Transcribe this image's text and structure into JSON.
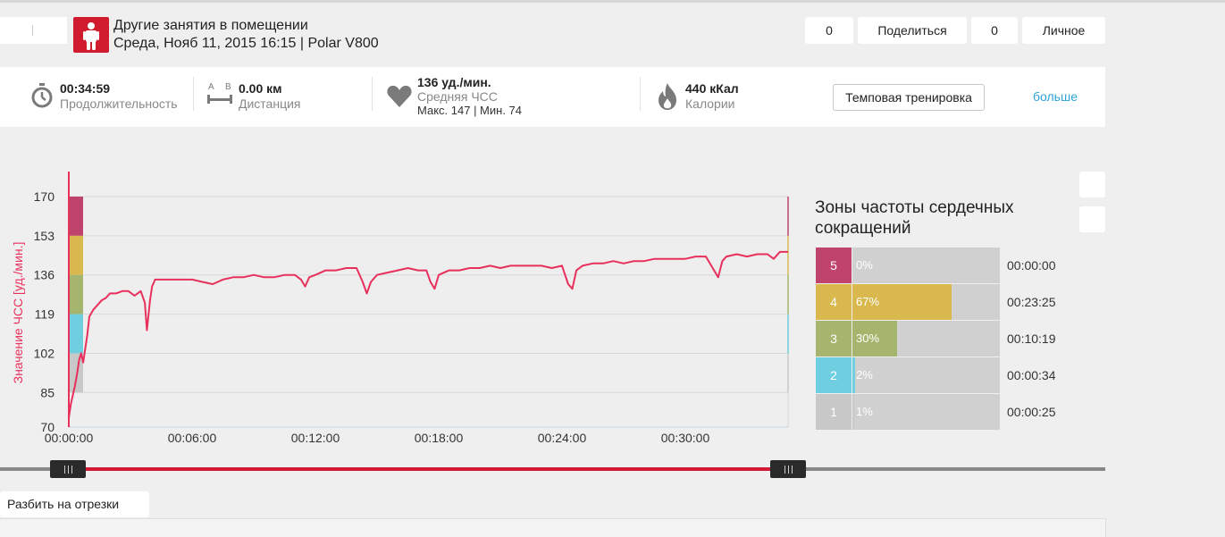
{
  "header": {
    "title": "Другие занятия в помещении",
    "subtitle": "Среда, Нояб 11, 2015 16:15 | Polar V800",
    "sport_icon": "person-indoor-icon",
    "likes_count": "0",
    "share_label": "Поделиться",
    "comments_count": "0",
    "privacy_label": "Личное"
  },
  "summary": {
    "duration": {
      "value": "00:34:59",
      "label": "Продолжительность",
      "icon": "stopwatch-icon"
    },
    "distance": {
      "value": "0.00 км",
      "label": "Дистанция",
      "icon": "distance-ab-icon",
      "icon_a": "A",
      "icon_b": "B"
    },
    "heart_rate": {
      "value": "136 уд./мин.",
      "label": "Средняя ЧСС",
      "max_min": "Макс. 147  |  Мин. 74",
      "icon": "heart-icon"
    },
    "calories": {
      "value": "440 кКал",
      "label": "Калории",
      "icon": "flame-icon"
    },
    "training_type_label": "Темповая тренировка",
    "more_label": "больше"
  },
  "colors": {
    "brand_red": "#d11b2f",
    "hr_line": "#e8305c",
    "link_blue": "#2ea3d8",
    "zone5": "#c0436d",
    "zone4": "#d9b84e",
    "zone3": "#a6b56d",
    "zone2": "#6fcfe0",
    "zone1": "#c8c8c8"
  },
  "chart_data": {
    "type": "line",
    "title": "",
    "ylabel": "Значение ЧСС [уд./мин.]",
    "xlabel": "",
    "ylim": [
      70,
      170
    ],
    "xlim_minutes": [
      0,
      35
    ],
    "yticks": [
      "170",
      "153",
      "136",
      "119",
      "102",
      "85",
      "70"
    ],
    "xticks": [
      "00:00:00",
      "00:06:00",
      "00:12:00",
      "00:18:00",
      "00:24:00",
      "00:30:00"
    ],
    "zone_bands": [
      {
        "zone": 5,
        "min": 153,
        "max": 170
      },
      {
        "zone": 4,
        "min": 136,
        "max": 153
      },
      {
        "zone": 3,
        "min": 119,
        "max": 136
      },
      {
        "zone": 2,
        "min": 102,
        "max": 119
      },
      {
        "zone": 1,
        "min": 85,
        "max": 102
      }
    ],
    "series": [
      {
        "x_minutes": [
          0,
          0.1,
          0.2,
          0.3,
          0.4,
          0.5,
          0.6,
          0.7,
          0.8,
          0.9,
          1.0,
          1.2,
          1.4,
          1.6,
          1.8,
          2.0,
          2.3,
          2.6,
          2.9,
          3.2,
          3.5,
          3.7,
          3.8,
          3.95,
          4.05,
          4.2,
          4.4,
          4.6,
          5,
          5.5,
          6,
          6.5,
          7,
          7.5,
          8,
          8.5,
          9,
          9.5,
          10,
          10.5,
          11,
          11.3,
          11.5,
          11.7,
          12,
          12.5,
          13,
          13.5,
          14,
          14.3,
          14.5,
          14.7,
          15,
          15.5,
          16,
          16.5,
          17,
          17.4,
          17.6,
          17.8,
          18,
          18.5,
          19,
          19.5,
          20,
          20.5,
          21,
          21.5,
          22,
          22.5,
          23,
          23.5,
          24,
          24.3,
          24.5,
          24.7,
          25,
          25.5,
          26,
          26.5,
          27,
          27.5,
          28,
          28.5,
          29,
          29.5,
          30,
          30.5,
          31,
          31.4,
          31.6,
          31.8,
          32,
          32.5,
          33,
          33.5,
          34,
          34.3,
          34.6,
          35
        ],
        "hr_bpm": [
          74,
          80,
          84,
          88,
          93,
          99,
          102,
          98,
          104,
          110,
          118,
          121,
          123,
          125,
          126,
          128,
          128,
          129,
          129,
          127,
          129,
          124,
          112,
          125,
          131,
          134,
          134,
          134,
          134,
          134,
          134,
          133,
          132,
          134,
          135,
          135,
          136,
          135,
          135,
          136,
          136,
          134,
          131,
          135,
          136,
          138,
          138,
          139,
          139,
          133,
          128,
          133,
          136,
          137,
          138,
          139,
          138,
          138,
          133,
          130,
          136,
          138,
          138,
          139,
          139,
          140,
          139,
          140,
          140,
          140,
          140,
          139,
          140,
          132,
          130,
          138,
          140,
          141,
          141,
          142,
          141,
          142,
          142,
          143,
          143,
          143,
          143,
          144,
          144,
          138,
          135,
          142,
          144,
          145,
          144,
          145,
          145,
          143,
          146,
          146
        ]
      }
    ]
  },
  "zones": {
    "title": "Зоны частоты сердечных сокращений",
    "items": [
      {
        "zone": "5",
        "percent": "0%",
        "time": "00:00:00",
        "fraction": 0.0
      },
      {
        "zone": "4",
        "percent": "67%",
        "time": "00:23:25",
        "fraction": 0.67
      },
      {
        "zone": "3",
        "percent": "30%",
        "time": "00:10:19",
        "fraction": 0.3
      },
      {
        "zone": "2",
        "percent": "2%",
        "time": "00:00:34",
        "fraction": 0.02
      },
      {
        "zone": "1",
        "percent": "1%",
        "time": "00:00:25",
        "fraction": 0.01
      }
    ]
  },
  "range_slider": {
    "start_fraction": 0.0,
    "end_fraction": 1.0
  },
  "split_label": "Разбить на отрезки"
}
